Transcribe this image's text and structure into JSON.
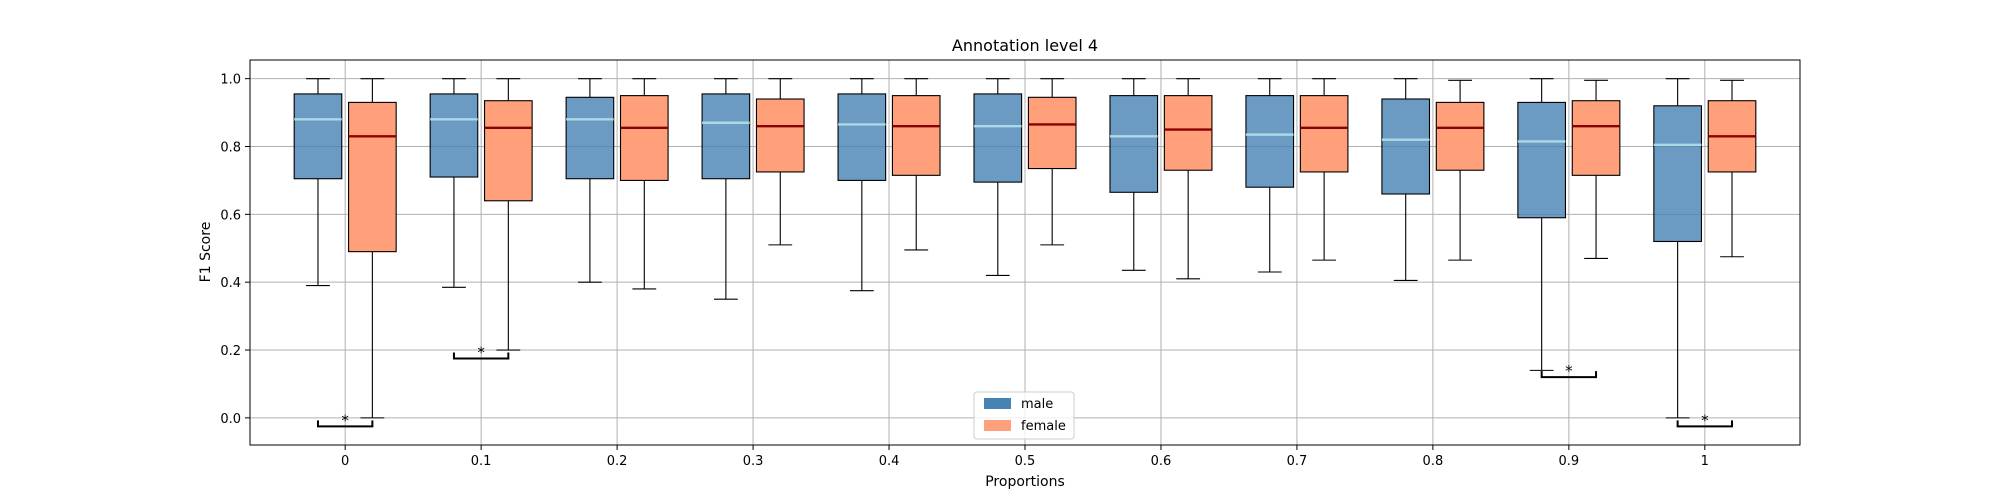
{
  "chart_data": {
    "type": "box",
    "title": "Annotation level 4",
    "xlabel": "Proportions",
    "ylabel": "F1 Score",
    "ylim": [
      -0.08,
      1.055
    ],
    "xlim": [
      -0.7,
      10.7
    ],
    "y_ticks": [
      0.0,
      0.2,
      0.4,
      0.6,
      0.8,
      1.0
    ],
    "y_tick_labels": [
      "0.0",
      "0.2",
      "0.4",
      "0.6",
      "0.8",
      "1.0"
    ],
    "categories": [
      "0",
      "0.1",
      "0.2",
      "0.3",
      "0.4",
      "0.5",
      "0.6",
      "0.7",
      "0.8",
      "0.9",
      "1"
    ],
    "grid": true,
    "legend_position": "bottom-center",
    "series": [
      {
        "name": "male",
        "color": "#4682b4",
        "median_color": "#add8e6",
        "boxes": [
          {
            "whislo": 0.39,
            "q1": 0.705,
            "med": 0.88,
            "q3": 0.955,
            "whishi": 1.0
          },
          {
            "whislo": 0.385,
            "q1": 0.71,
            "med": 0.88,
            "q3": 0.955,
            "whishi": 1.0
          },
          {
            "whislo": 0.4,
            "q1": 0.705,
            "med": 0.88,
            "q3": 0.945,
            "whishi": 1.0
          },
          {
            "whislo": 0.35,
            "q1": 0.705,
            "med": 0.87,
            "q3": 0.955,
            "whishi": 1.0
          },
          {
            "whislo": 0.375,
            "q1": 0.7,
            "med": 0.865,
            "q3": 0.955,
            "whishi": 1.0
          },
          {
            "whislo": 0.42,
            "q1": 0.695,
            "med": 0.86,
            "q3": 0.955,
            "whishi": 1.0
          },
          {
            "whislo": 0.435,
            "q1": 0.665,
            "med": 0.83,
            "q3": 0.95,
            "whishi": 1.0
          },
          {
            "whislo": 0.43,
            "q1": 0.68,
            "med": 0.835,
            "q3": 0.95,
            "whishi": 1.0
          },
          {
            "whislo": 0.405,
            "q1": 0.66,
            "med": 0.82,
            "q3": 0.94,
            "whishi": 1.0
          },
          {
            "whislo": 0.14,
            "q1": 0.59,
            "med": 0.815,
            "q3": 0.93,
            "whishi": 1.0
          },
          {
            "whislo": 0.0,
            "q1": 0.52,
            "med": 0.805,
            "q3": 0.92,
            "whishi": 1.0
          }
        ]
      },
      {
        "name": "female",
        "color": "#ffa07a",
        "median_color": "#8b0000",
        "boxes": [
          {
            "whislo": 0.0,
            "q1": 0.49,
            "med": 0.83,
            "q3": 0.93,
            "whishi": 1.0
          },
          {
            "whislo": 0.2,
            "q1": 0.64,
            "med": 0.855,
            "q3": 0.935,
            "whishi": 1.0
          },
          {
            "whislo": 0.38,
            "q1": 0.7,
            "med": 0.855,
            "q3": 0.95,
            "whishi": 1.0
          },
          {
            "whislo": 0.51,
            "q1": 0.725,
            "med": 0.86,
            "q3": 0.94,
            "whishi": 1.0
          },
          {
            "whislo": 0.495,
            "q1": 0.715,
            "med": 0.86,
            "q3": 0.95,
            "whishi": 1.0
          },
          {
            "whislo": 0.51,
            "q1": 0.735,
            "med": 0.865,
            "q3": 0.945,
            "whishi": 1.0
          },
          {
            "whislo": 0.41,
            "q1": 0.73,
            "med": 0.85,
            "q3": 0.95,
            "whishi": 1.0
          },
          {
            "whislo": 0.465,
            "q1": 0.725,
            "med": 0.855,
            "q3": 0.95,
            "whishi": 1.0
          },
          {
            "whislo": 0.465,
            "q1": 0.73,
            "med": 0.855,
            "q3": 0.93,
            "whishi": 0.995
          },
          {
            "whislo": 0.47,
            "q1": 0.715,
            "med": 0.86,
            "q3": 0.935,
            "whishi": 0.995
          },
          {
            "whislo": 0.475,
            "q1": 0.725,
            "med": 0.83,
            "q3": 0.935,
            "whishi": 0.995
          }
        ]
      }
    ],
    "significance": [
      {
        "category": "0",
        "y": -0.025,
        "label": "*"
      },
      {
        "category": "0.1",
        "y": 0.175,
        "label": "*"
      },
      {
        "category": "0.9",
        "y": 0.12,
        "label": "*"
      },
      {
        "category": "1",
        "y": -0.025,
        "label": "*"
      }
    ]
  }
}
